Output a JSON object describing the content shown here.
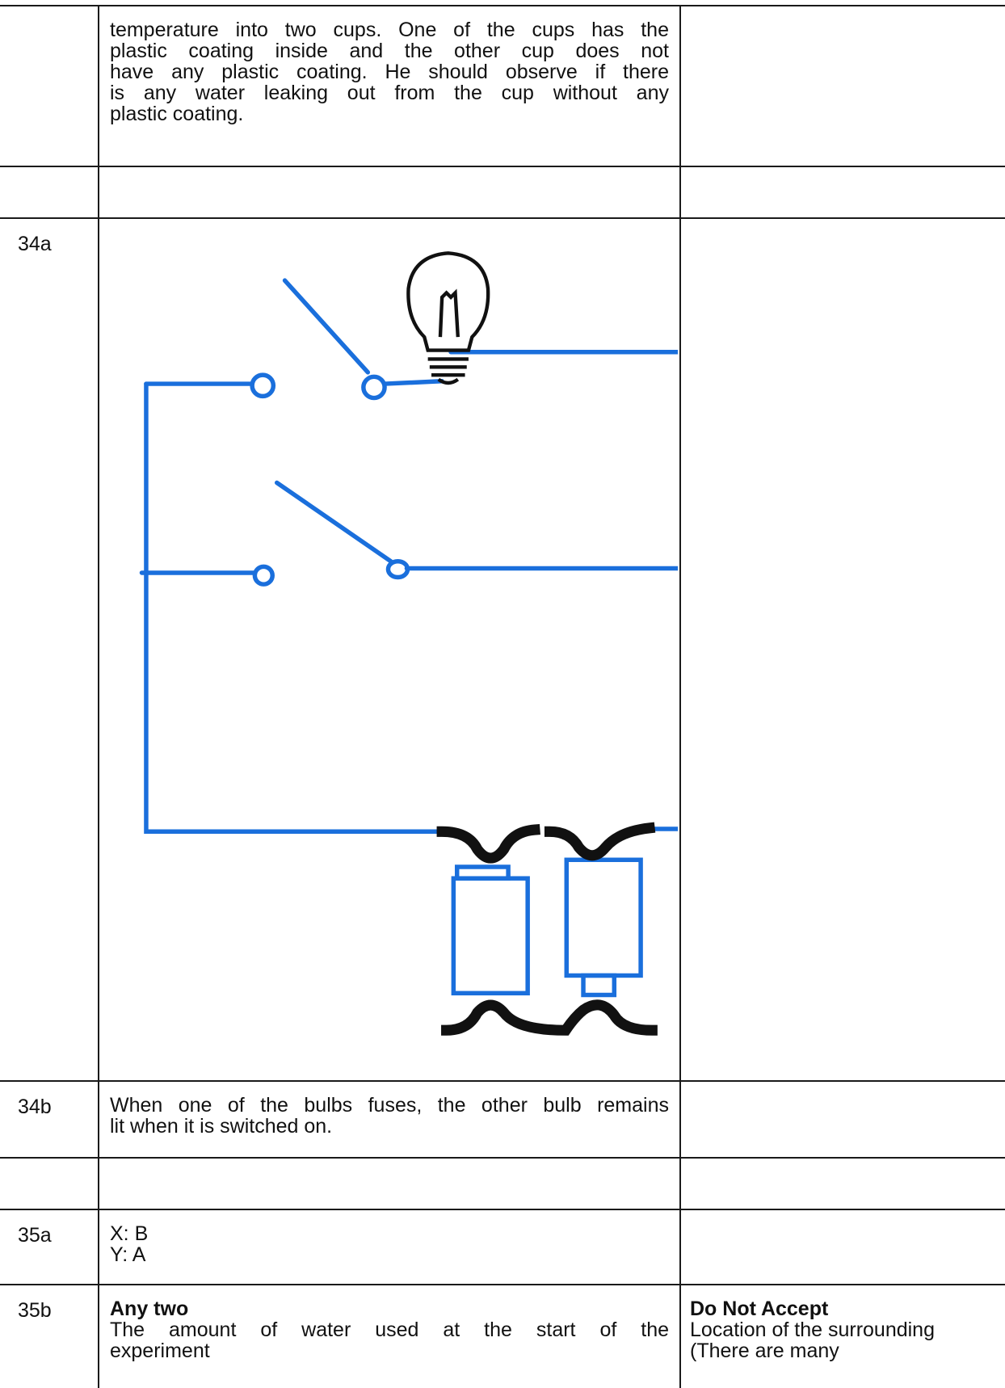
{
  "table": {
    "rows": [
      {
        "answer": {
          "lines": [
            "temperature into two cups. One of the cups has the",
            "plastic coating inside and the other cup does not",
            "have any plastic coating. He should observe if there",
            "is any water leaking out from the cup without any",
            "plastic coating."
          ],
          "justified": true
        }
      },
      {},
      {
        "label": "34a"
      },
      {
        "label": "34b",
        "answer": {
          "lines": [
            "When one of the bulbs fuses, the other bulb remains",
            "lit when it is switched on."
          ],
          "justified": true
        }
      },
      {},
      {
        "label": "35a",
        "answer": {
          "lines": [
            "X: B",
            "Y: A"
          ]
        }
      },
      {
        "label": "35b",
        "answer": {
          "heading": "Any two",
          "lines": [
            "The amount of water used at the start of the",
            "experiment"
          ],
          "justified": true
        },
        "remarks": {
          "heading": "Do Not Accept",
          "lines": [
            "Location of the surrounding",
            "(There are many"
          ]
        }
      }
    ]
  }
}
